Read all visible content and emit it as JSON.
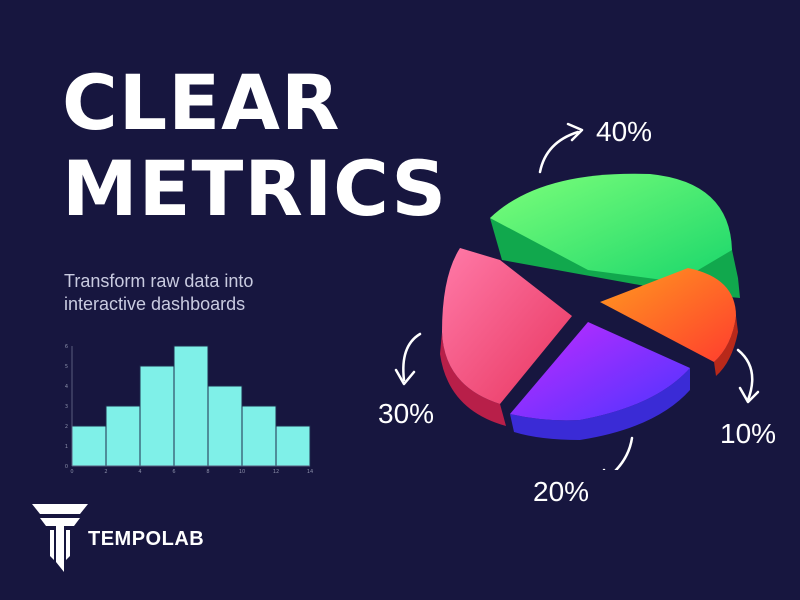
{
  "headline": {
    "line1": "CLEAR",
    "line2": "METRICS"
  },
  "subtitle": {
    "line1": "Transform raw data into",
    "line2": "interactive dashboards"
  },
  "brand": {
    "name": "TEMPOLAB"
  },
  "colors": {
    "background": "#17163f",
    "histogram_fill": "#7ff0e8",
    "slice_green": "#3ef06a",
    "slice_orange": "#ff6a1f",
    "slice_purple": "#8a2bff",
    "slice_pink": "#f0578f"
  },
  "icons": {
    "arrows": "curved-arrow-icon",
    "logo": "tempolab-logo-icon"
  },
  "chart_data": [
    {
      "type": "bar",
      "title": "",
      "xlabel": "",
      "ylabel": "",
      "bin_edges": [
        0,
        2,
        4,
        6,
        8,
        10,
        12,
        14
      ],
      "values": [
        2,
        3,
        5,
        6,
        4,
        3,
        2
      ],
      "xticks": [
        0,
        2,
        4,
        6,
        8,
        10,
        12,
        14
      ],
      "yticks": [
        0,
        1,
        2,
        3,
        4,
        5,
        6
      ],
      "xlim": [
        0,
        14
      ],
      "ylim": [
        0,
        6
      ],
      "grid": false
    },
    {
      "type": "pie",
      "slices": [
        {
          "label": "40%",
          "value": 40,
          "color": "#3ef06a"
        },
        {
          "label": "10%",
          "value": 10,
          "color": "#ff6a1f"
        },
        {
          "label": "20%",
          "value": 20,
          "color": "#8a2bff"
        },
        {
          "label": "30%",
          "value": 30,
          "color": "#f0578f"
        }
      ]
    }
  ]
}
